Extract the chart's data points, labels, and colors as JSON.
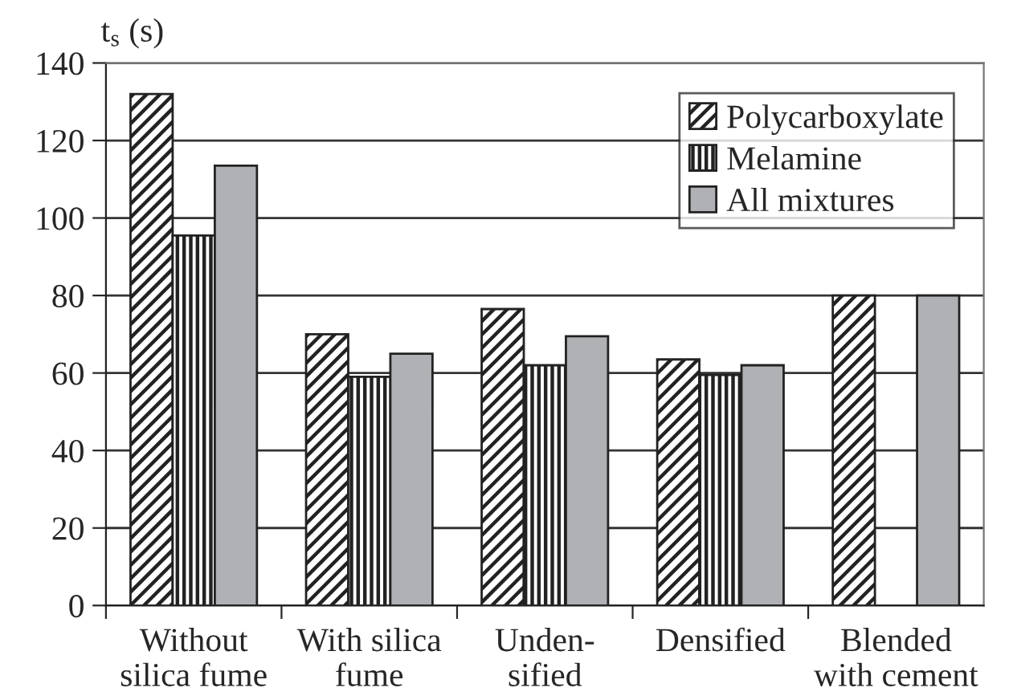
{
  "chart_data": {
    "type": "bar",
    "ylabel": "t$_{s}$ (s)",
    "categories": [
      "Without\nsilica fume",
      "With silica\nfume",
      "Unden-\nsified",
      "Densified",
      "Blended\nwith cement"
    ],
    "series": [
      {
        "name": "Polycarboxylate",
        "color": "#222222",
        "values": [
          132,
          70,
          76.5,
          63.5,
          80
        ]
      },
      {
        "name": "Melamine",
        "color": "#222222",
        "values": [
          95.5,
          59,
          62,
          59.5,
          null
        ]
      },
      {
        "name": "All mixtures",
        "color": "#b0b1b5",
        "values": [
          113.5,
          65,
          69.5,
          62,
          80
        ]
      }
    ],
    "ylim": [
      0,
      140
    ],
    "yticks": [
      0,
      20,
      40,
      60,
      80,
      100,
      120,
      140
    ],
    "grid": "y",
    "legend": "top right"
  }
}
